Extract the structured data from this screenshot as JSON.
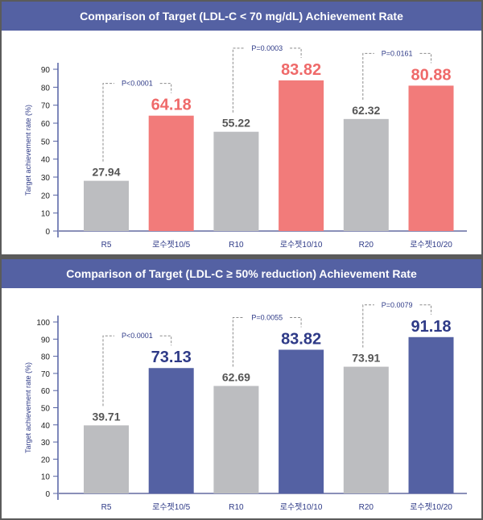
{
  "chart_data": [
    {
      "type": "bar",
      "title": "Comparison of Target (LDL-C < 70 mg/dL) Achievement Rate",
      "ylabel": "Target achievement rate (%)",
      "xlabel": "",
      "ylim": [
        0,
        90
      ],
      "yticks": [
        0,
        10,
        20,
        30,
        40,
        50,
        60,
        70,
        80,
        90
      ],
      "categories": [
        "R5",
        "로수젯10/5",
        "R10",
        "로수젯10/10",
        "R20",
        "로수젯10/20"
      ],
      "values": [
        27.94,
        64.18,
        55.22,
        83.82,
        62.32,
        80.88
      ],
      "value_labels": [
        "27.94",
        "64.18",
        "55.22",
        "83.82",
        "62.32",
        "80.88"
      ],
      "colors": [
        "#bcbdc0",
        "#f27b7a",
        "#bcbdc0",
        "#f27b7a",
        "#bcbdc0",
        "#f27b7a"
      ],
      "label_colors": [
        "#555555",
        "#ef6a6a",
        "#555555",
        "#ef6a6a",
        "#555555",
        "#ef6a6a"
      ],
      "comparisons": [
        {
          "pair": [
            0,
            1
          ],
          "label": "P<0.0001"
        },
        {
          "pair": [
            2,
            3
          ],
          "label": "P=0.0003"
        },
        {
          "pair": [
            4,
            5
          ],
          "label": "P=0.0161"
        }
      ],
      "grid": false,
      "legend": "none"
    },
    {
      "type": "bar",
      "title": "Comparison of Target (LDL-C ≥ 50% reduction) Achievement Rate",
      "ylabel": "Target achievement rate (%)",
      "xlabel": "",
      "ylim": [
        0,
        100
      ],
      "yticks": [
        0,
        10,
        20,
        30,
        40,
        50,
        60,
        70,
        80,
        90,
        100
      ],
      "categories": [
        "R5",
        "로수젯10/5",
        "R10",
        "로수젯10/10",
        "R20",
        "로수젯10/20"
      ],
      "values": [
        39.71,
        73.13,
        62.69,
        83.82,
        73.91,
        91.18
      ],
      "value_labels": [
        "39.71",
        "73.13",
        "62.69",
        "83.82",
        "73.91",
        "91.18"
      ],
      "colors": [
        "#bcbdc0",
        "#5461a3",
        "#bcbdc0",
        "#5461a3",
        "#bcbdc0",
        "#5461a3"
      ],
      "label_colors": [
        "#555555",
        "#2e3a87",
        "#555555",
        "#2e3a87",
        "#555555",
        "#2e3a87"
      ],
      "comparisons": [
        {
          "pair": [
            0,
            1
          ],
          "label": "P<0.0001"
        },
        {
          "pair": [
            2,
            3
          ],
          "label": "P=0.0055"
        },
        {
          "pair": [
            4,
            5
          ],
          "label": "P=0.0079"
        }
      ],
      "grid": false,
      "legend": "none"
    }
  ]
}
